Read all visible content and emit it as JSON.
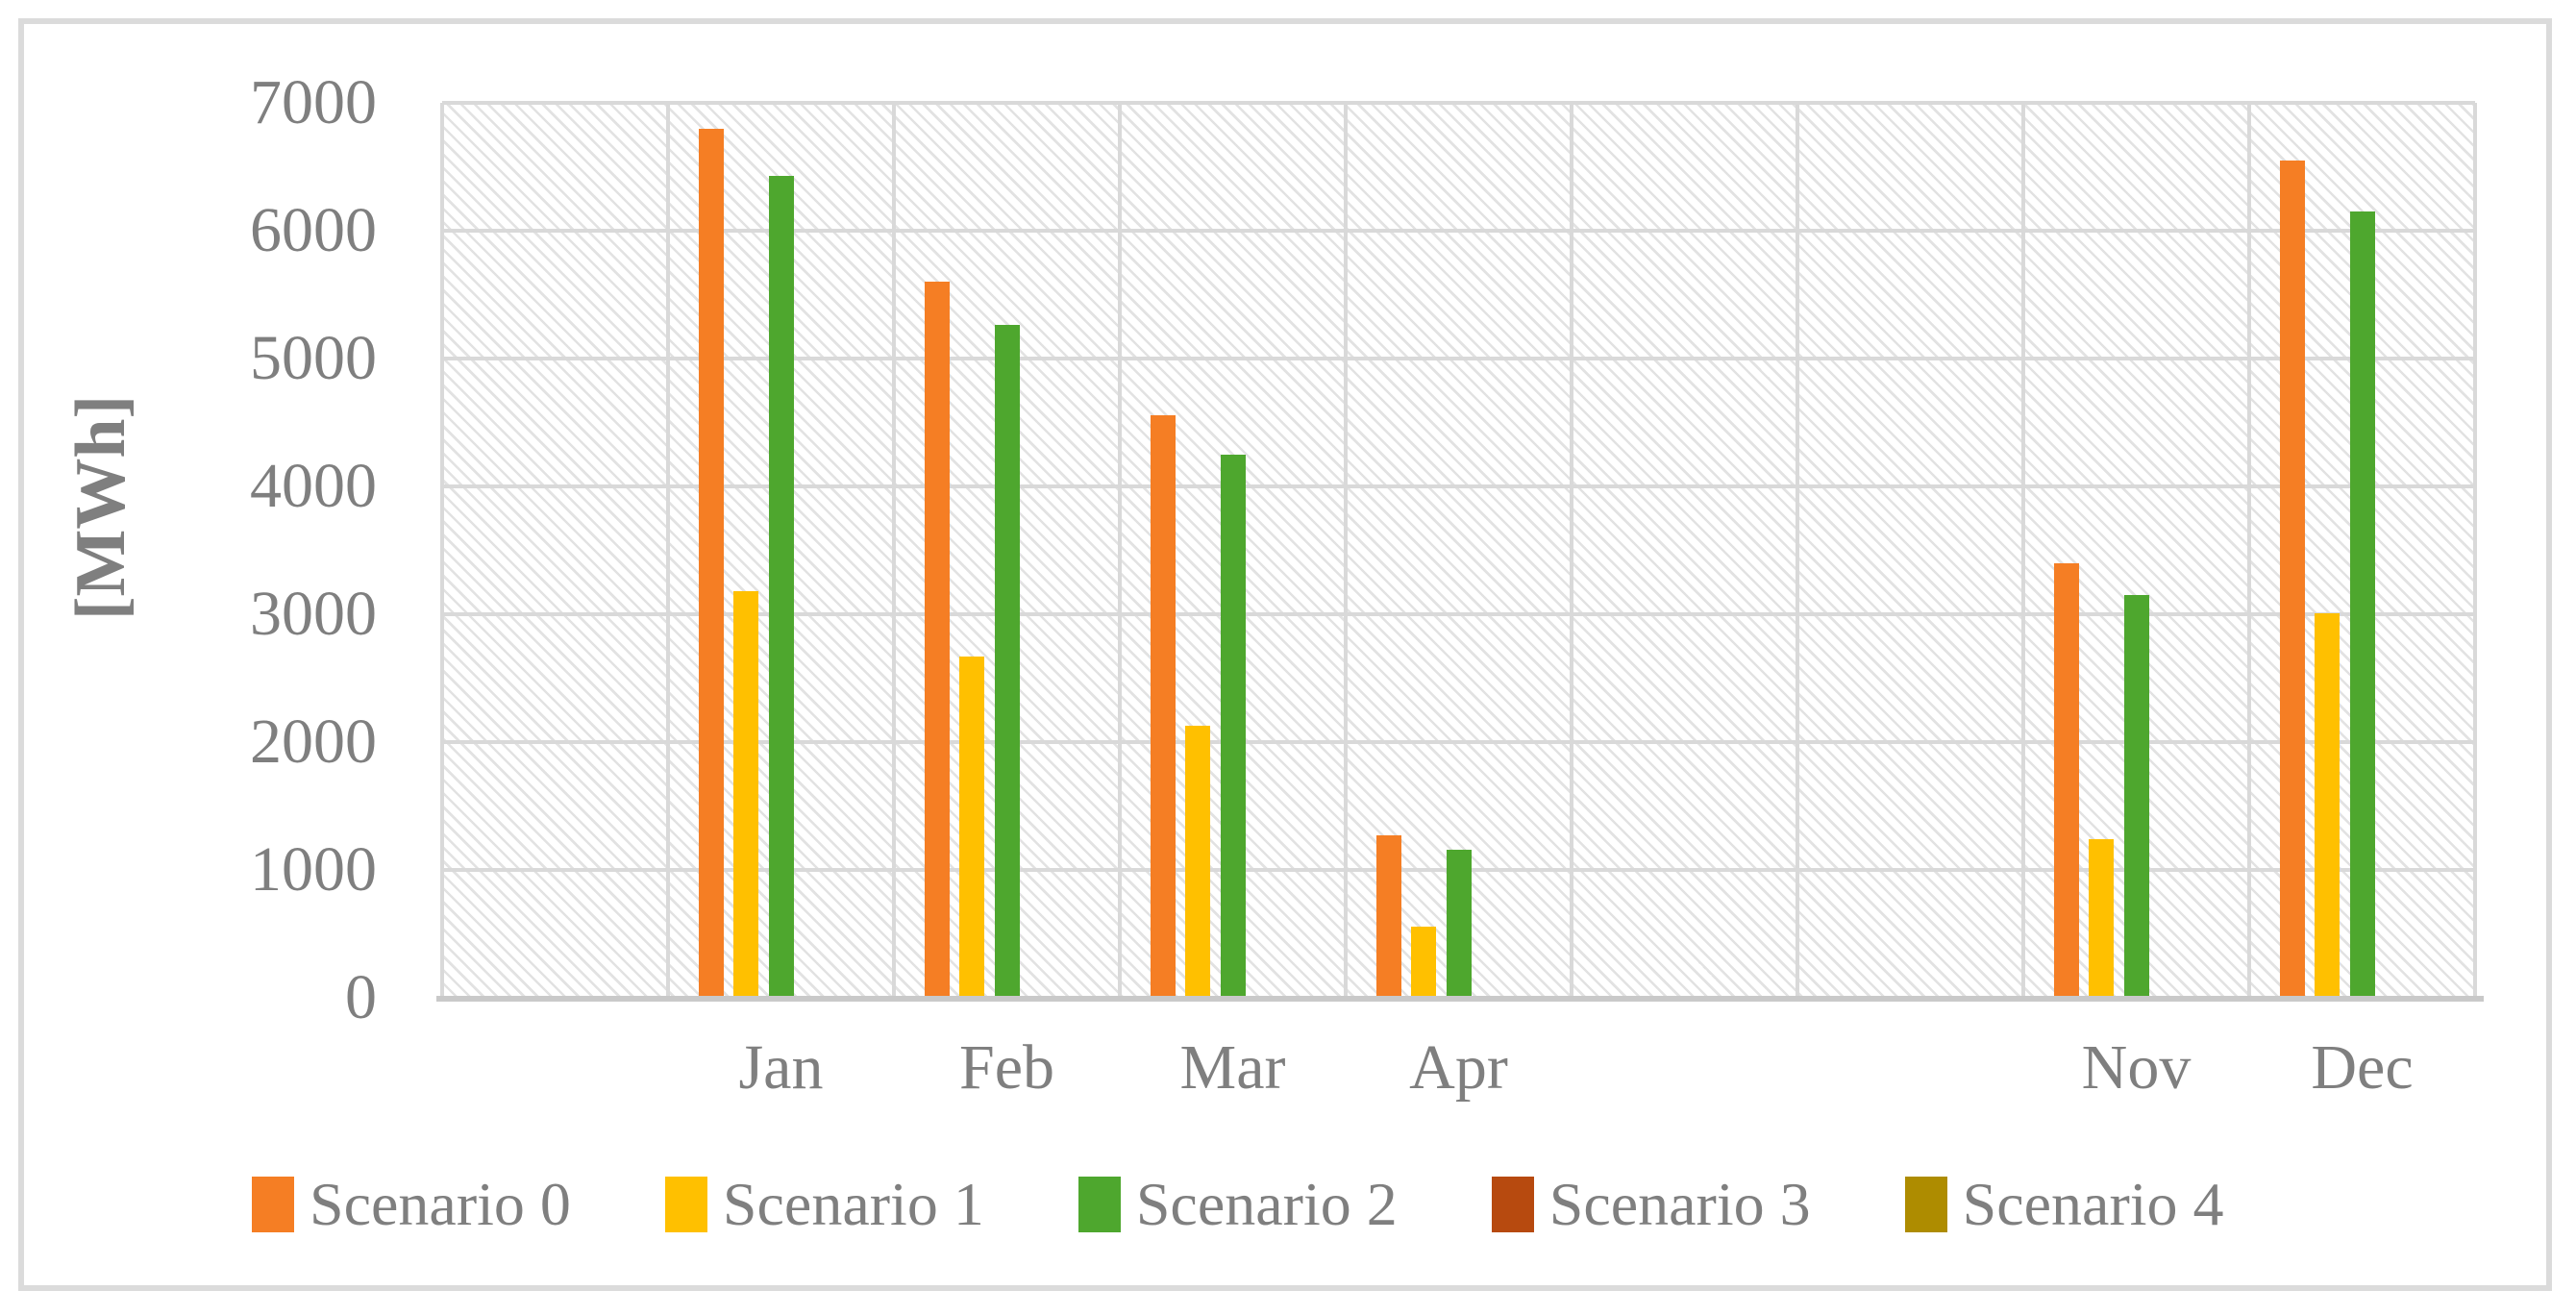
{
  "figure": {
    "kind": "clustered-column-chart",
    "background": "#ffffff",
    "border_color": "#DBDBDB",
    "text_color": "#7F7F7F",
    "gridline_color": "#D9D9D9",
    "axis_line_color": "#C9C9C9",
    "plot_hatch_color": "#e2e2e2"
  },
  "chart_data": {
    "type": "bar",
    "title": "",
    "ylabel": "[MWh]",
    "xlabel": "",
    "ylim": [
      0,
      7000
    ],
    "ytick_step": 1000,
    "ytick_labels": [
      "0",
      "1000",
      "2000",
      "3000",
      "4000",
      "5000",
      "6000",
      "7000"
    ],
    "grid": true,
    "plot_fill": "light-diagonal-hatch",
    "legend_position": "bottom",
    "categories": [
      "",
      "Jan",
      "Feb",
      "Mar",
      "Apr",
      "",
      "",
      "Nov",
      "Dec"
    ],
    "series": [
      {
        "name": "Scenario 0",
        "color": "#F57E24",
        "values": [
          0,
          6800,
          5600,
          4560,
          1270,
          0,
          0,
          3400,
          6550
        ]
      },
      {
        "name": "Scenario 1",
        "color": "#FFC000",
        "values": [
          0,
          3180,
          2670,
          2130,
          560,
          0,
          0,
          1240,
          3010
        ]
      },
      {
        "name": "Scenario 2",
        "color": "#4EA72E",
        "values": [
          0,
          6430,
          5260,
          4250,
          1160,
          0,
          0,
          3150,
          6150
        ]
      },
      {
        "name": "Scenario 3",
        "color": "#B74A0F",
        "values": [
          0,
          0,
          0,
          0,
          0,
          0,
          0,
          0,
          0
        ]
      },
      {
        "name": "Scenario 4",
        "color": "#AE8C00",
        "values": [
          0,
          0,
          0,
          0,
          0,
          0,
          0,
          0,
          0
        ]
      }
    ]
  }
}
